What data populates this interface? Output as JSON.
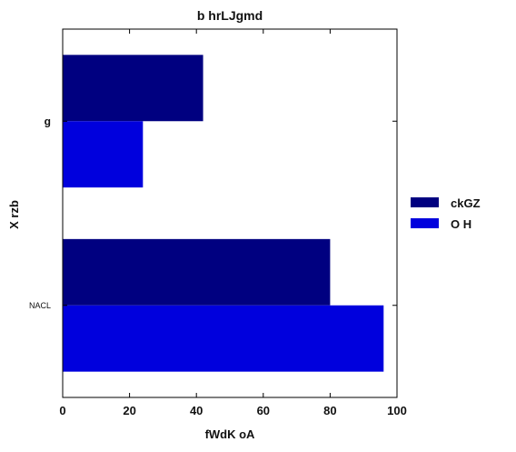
{
  "chart_data": {
    "type": "bar",
    "orientation": "horizontal",
    "title": "b hrLJgmd",
    "xlabel": "fWdK oA",
    "ylabel": "X rzb",
    "categories": [
      "g",
      "NACL"
    ],
    "xlim": [
      0,
      100
    ],
    "xticks": [
      "0",
      "20",
      "40",
      "60",
      "80",
      "100"
    ],
    "series": [
      {
        "name": "ckGZ",
        "color": "#000080",
        "values": [
          42,
          80
        ]
      },
      {
        "name": "O H",
        "color": "#0000dd",
        "values": [
          24,
          96
        ]
      }
    ],
    "grid": false,
    "legend": "right"
  }
}
